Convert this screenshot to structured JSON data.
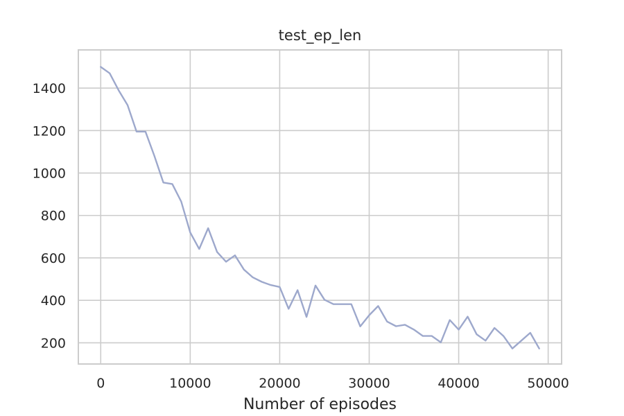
{
  "chart_data": {
    "type": "line",
    "title": "test_ep_len",
    "xlabel": "Number of episodes",
    "ylabel": "",
    "xlim": [
      -2500,
      51500
    ],
    "ylim": [
      100,
      1580
    ],
    "xticks": [
      0,
      10000,
      20000,
      30000,
      40000,
      50000
    ],
    "yticks": [
      200,
      400,
      600,
      800,
      1000,
      1200,
      1400
    ],
    "xtick_labels": [
      "0",
      "10000",
      "20000",
      "30000",
      "40000",
      "50000"
    ],
    "ytick_labels": [
      "200",
      "400",
      "600",
      "800",
      "1000",
      "1200",
      "1400"
    ],
    "grid": true,
    "legend": "none",
    "x": [
      0,
      1000,
      2000,
      3000,
      4000,
      5000,
      6000,
      7000,
      8000,
      9000,
      10000,
      11000,
      12000,
      13000,
      14000,
      15000,
      16000,
      17000,
      18000,
      19000,
      20000,
      21000,
      22000,
      23000,
      24000,
      25000,
      26000,
      27000,
      28000,
      29000,
      30000,
      31000,
      32000,
      33000,
      34000,
      35000,
      36000,
      37000,
      38000,
      39000,
      40000,
      41000,
      42000,
      43000,
      44000,
      45000,
      46000,
      47000,
      48000,
      49000
    ],
    "series": [
      {
        "color": "#9da8cc",
        "values": [
          1500,
          1470,
          1390,
          1320,
          1195,
          1195,
          1080,
          955,
          948,
          865,
          720,
          642,
          740,
          628,
          582,
          612,
          545,
          508,
          487,
          472,
          463,
          360,
          448,
          322,
          470,
          403,
          382,
          382,
          382,
          277,
          330,
          373,
          300,
          278,
          285,
          262,
          232,
          232,
          202,
          307,
          262,
          323,
          240,
          210,
          270,
          232,
          173,
          210,
          247,
          173
        ]
      }
    ]
  }
}
